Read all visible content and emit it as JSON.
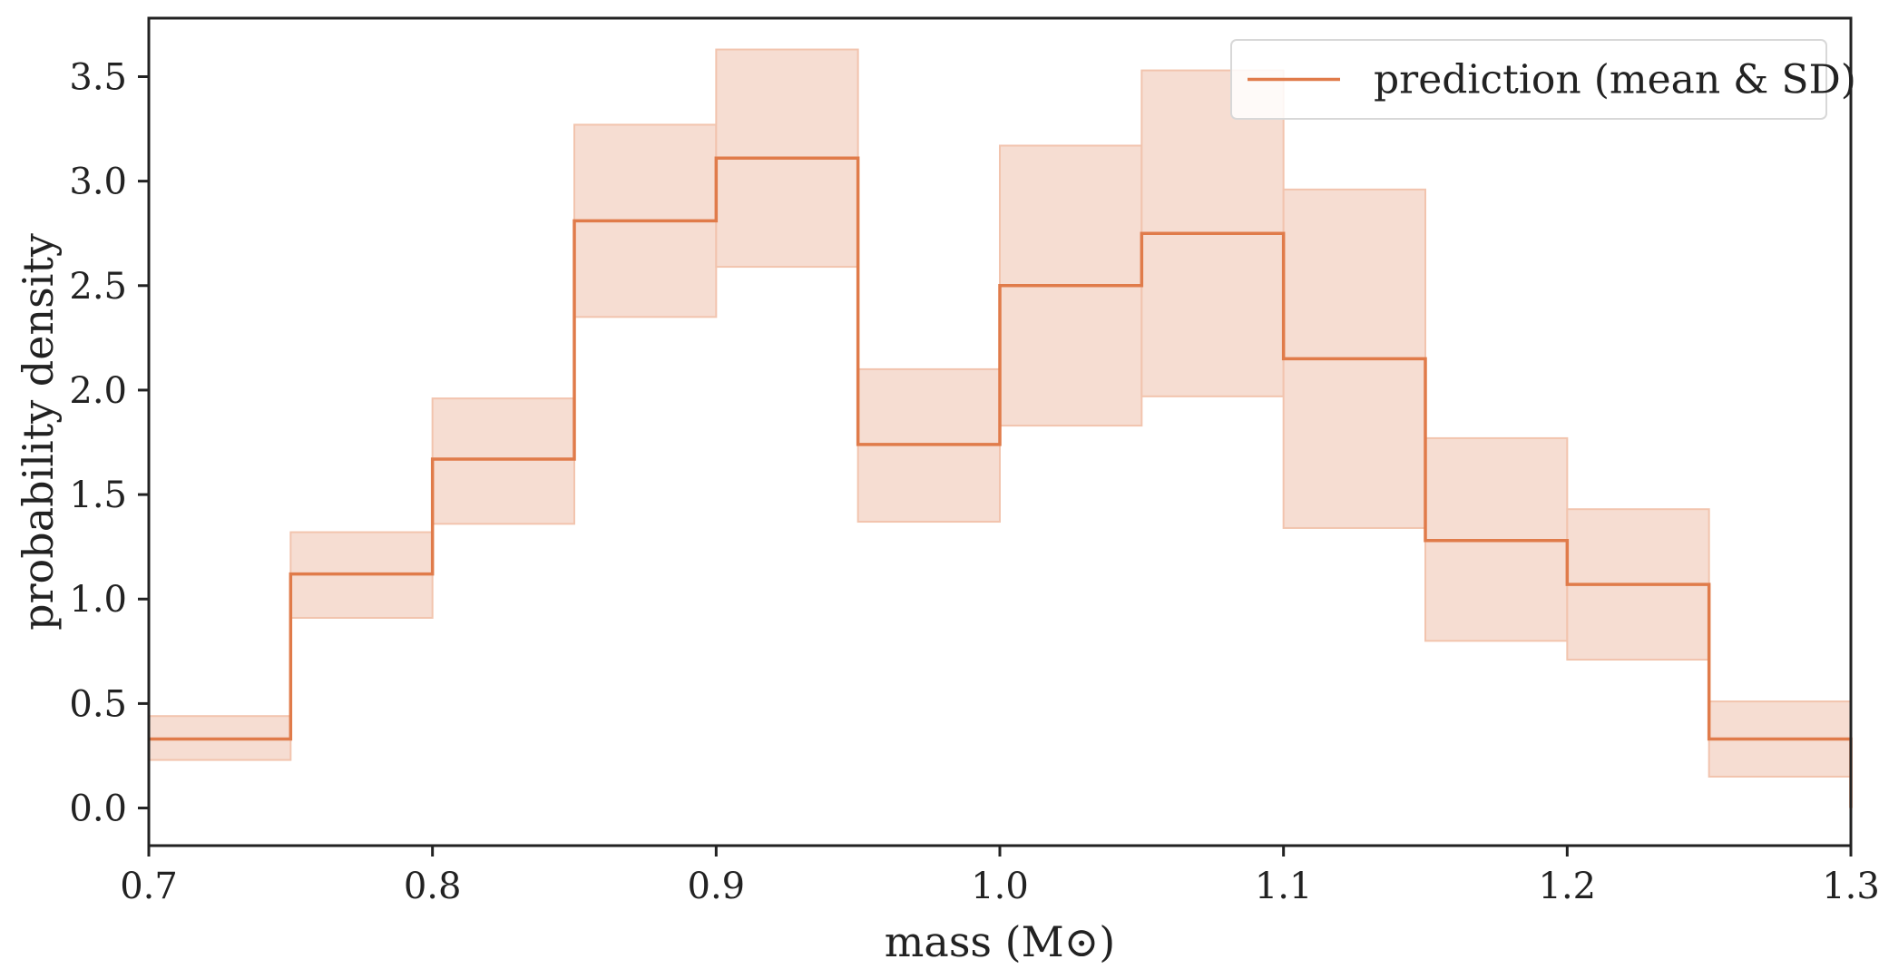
{
  "chart_data": {
    "type": "area",
    "xlabel": "mass (M⊙)",
    "ylabel": "probability density",
    "xlim": [
      0.7,
      1.3
    ],
    "ylim": [
      -0.18,
      3.78
    ],
    "xticks": [
      0.7,
      0.8,
      0.9,
      1.0,
      1.1,
      1.2,
      1.3
    ],
    "xtick_labels": [
      "0.7",
      "0.8",
      "0.9",
      "1.0",
      "1.1",
      "1.2",
      "1.3"
    ],
    "yticks": [
      0.0,
      0.5,
      1.0,
      1.5,
      2.0,
      2.5,
      3.0,
      3.5
    ],
    "ytick_labels": [
      "0.0",
      "0.5",
      "1.0",
      "1.5",
      "2.0",
      "2.5",
      "3.0",
      "3.5"
    ],
    "grid": false,
    "legend_position": "top-right",
    "colors": {
      "line": "#e07b4a",
      "band": "#f6ddd2",
      "band_edge": "#f2c4ae",
      "axes": "#222222"
    },
    "series": [
      {
        "name": "prediction (mean & SD)",
        "bin_edges": [
          0.7,
          0.75,
          0.8,
          0.85,
          0.9,
          0.95,
          1.0,
          1.05,
          1.1,
          1.15,
          1.2,
          1.25,
          1.3
        ],
        "mean": [
          0.33,
          1.12,
          1.67,
          2.81,
          3.11,
          1.74,
          2.5,
          2.75,
          2.15,
          1.28,
          1.07,
          0.33
        ],
        "upper": [
          0.44,
          1.32,
          1.96,
          3.27,
          3.63,
          2.1,
          3.17,
          3.53,
          2.96,
          1.77,
          1.43,
          0.51
        ],
        "lower": [
          0.23,
          0.91,
          1.36,
          2.35,
          2.59,
          1.37,
          1.83,
          1.97,
          1.34,
          0.8,
          0.71,
          0.15
        ]
      }
    ]
  }
}
